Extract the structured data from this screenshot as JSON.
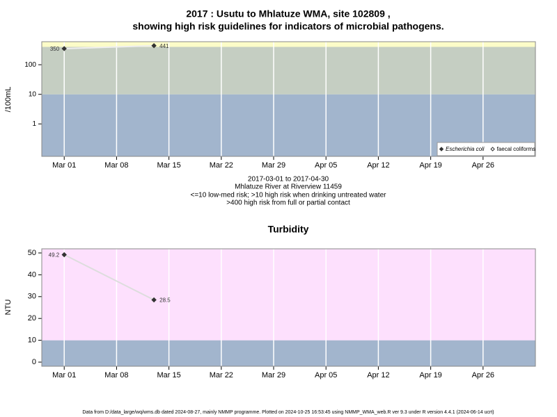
{
  "chart_data": [
    {
      "type": "line",
      "title": "2017 : Usutu to Mhlatuze WMA, site 102809 ,",
      "subtitle": "showing high risk guidelines for indicators of microbial pathogens.",
      "ylabel": "/100mL",
      "log_scale": true,
      "x": [
        "2017-03-01",
        "2017-03-13"
      ],
      "series": [
        {
          "name": "Escherichia coli",
          "color": "#333333",
          "marker": "filled-diamond",
          "values": [
            350,
            441
          ]
        },
        {
          "name": "faecal coliforms",
          "color": "#333333",
          "marker": "open-diamond",
          "values": [
            null,
            null
          ]
        }
      ],
      "value_labels": [
        "350",
        "441"
      ],
      "line_color": "#eeeeee",
      "xlim": [
        "2017-02-26",
        "2017-05-03"
      ],
      "xticks": [
        {
          "value": "2017-03-01",
          "label": "Mar 01"
        },
        {
          "value": "2017-03-08",
          "label": "Mar 08"
        },
        {
          "value": "2017-03-15",
          "label": "Mar 15"
        },
        {
          "value": "2017-03-22",
          "label": "Mar 22"
        },
        {
          "value": "2017-03-29",
          "label": "Mar 29"
        },
        {
          "value": "2017-04-05",
          "label": "Apr 05"
        },
        {
          "value": "2017-04-12",
          "label": "Apr 12"
        },
        {
          "value": "2017-04-19",
          "label": "Apr 19"
        },
        {
          "value": "2017-04-26",
          "label": "Apr 26"
        }
      ],
      "ylim": [
        0.08,
        600
      ],
      "yticks": [
        1,
        10,
        100
      ],
      "bands": [
        {
          "from": 0.08,
          "to": 10,
          "color": "#a2b5cd"
        },
        {
          "from": 10,
          "to": 400,
          "color": "#c5cec2"
        },
        {
          "from": 400,
          "to": 600,
          "color": "#fcfcc8"
        }
      ],
      "grid": true,
      "legend": "lower right",
      "notes": [
        "2017-03-01 to 2017-04-30",
        "Mhlatuze River at Riverview 11459",
        "<=10 low-med risk; >10 high risk when drinking untreated water",
        ">400 high risk from full or partial contact"
      ]
    },
    {
      "type": "line",
      "title": "Turbidity",
      "ylabel": "NTU",
      "log_scale": false,
      "x": [
        "2017-03-01",
        "2017-03-13"
      ],
      "series": [
        {
          "color": "#333333",
          "marker": "filled-diamond",
          "values": [
            49.2,
            28.5
          ]
        }
      ],
      "line_color": "#dddddd",
      "xlim": [
        "2017-02-26",
        "2017-05-03"
      ],
      "xticks": [
        {
          "value": "2017-03-01",
          "label": "Mar 01"
        },
        {
          "value": "2017-03-08",
          "label": "Mar 08"
        },
        {
          "value": "2017-03-15",
          "label": "Mar 15"
        },
        {
          "value": "2017-03-22",
          "label": "Mar 22"
        },
        {
          "value": "2017-03-29",
          "label": "Mar 29"
        },
        {
          "value": "2017-04-05",
          "label": "Apr 05"
        },
        {
          "value": "2017-04-12",
          "label": "Apr 12"
        },
        {
          "value": "2017-04-19",
          "label": "Apr 19"
        },
        {
          "value": "2017-04-26",
          "label": "Apr 26"
        }
      ],
      "ylim": [
        -1.9,
        51.9
      ],
      "yticks": [
        0,
        10,
        20,
        30,
        40,
        50
      ],
      "bands": [
        {
          "from": -1.9,
          "to": 10,
          "color": "#a2b5cd"
        },
        {
          "from": 10,
          "to": 51.9,
          "color": "#fde0fd"
        }
      ],
      "grid": true,
      "footer": "Data from D:/data_large/wq/wms.db dated 2024-08-27, mainly NMMP programme. Plotted on 2024-10-25 16:53:45 using NMMP_WMA_web.R ver 9.3 under R version 4.4.1 (2024-06-14 ucrt)"
    }
  ]
}
